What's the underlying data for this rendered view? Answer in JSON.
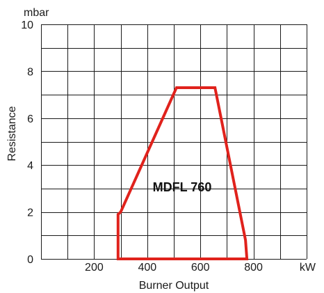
{
  "chart_data": {
    "type": "line",
    "title": "",
    "annotation": "MDFL 760",
    "xlabel": "Burner Output",
    "ylabel": "Resistance",
    "x_unit": "kW",
    "y_unit": "mbar",
    "xlim": [
      0,
      1000
    ],
    "ylim": [
      0,
      10
    ],
    "x_ticks": [
      200,
      400,
      600,
      800
    ],
    "x_tick_labels": [
      "200",
      "400",
      "600",
      "800"
    ],
    "y_ticks": [
      0,
      2,
      4,
      6,
      8,
      10
    ],
    "y_tick_labels": [
      "0",
      "2",
      "4",
      "6",
      "8",
      "10"
    ],
    "x_grid_step": 100,
    "y_grid_step": 1,
    "grid": true,
    "series": [
      {
        "points": [
          {
            "x": 290,
            "y": 0
          },
          {
            "x": 290,
            "y": 1.9
          },
          {
            "x": 300,
            "y": 2.0
          },
          {
            "x": 510,
            "y": 7.3
          },
          {
            "x": 655,
            "y": 7.3
          },
          {
            "x": 770,
            "y": 0.8
          },
          {
            "x": 775,
            "y": 0
          }
        ],
        "closed": true,
        "color": "#e0221c"
      }
    ]
  },
  "colors": {
    "grid": "#1a1a1a",
    "working_range": "#e0221c"
  }
}
